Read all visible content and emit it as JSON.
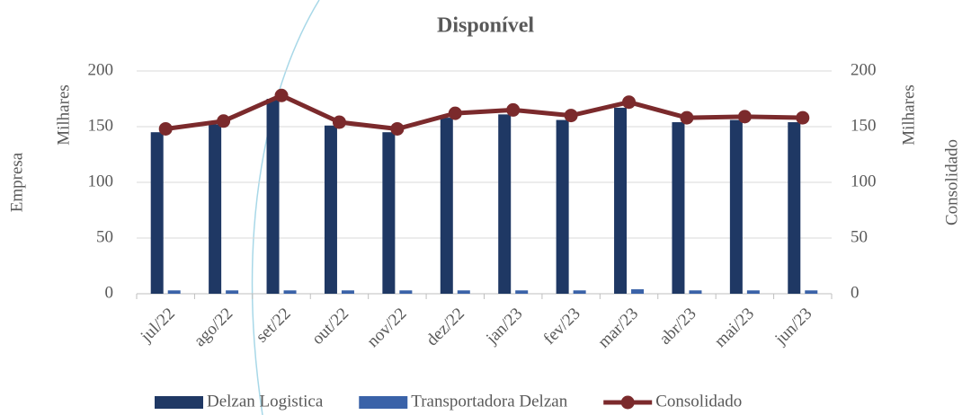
{
  "chart_data": {
    "type": "bar_line",
    "title": "Disponível",
    "y_label": "Empresa",
    "y_unit_label": "Milhares",
    "y2_label": "Consolidado",
    "y2_unit_label": "Milhares",
    "categories": [
      "jul/22",
      "ago/22",
      "set/22",
      "out/22",
      "nov/22",
      "dez/22",
      "jan/23",
      "fev/23",
      "mar/23",
      "abr/23",
      "mai/23",
      "jun/23"
    ],
    "series": [
      {
        "name": "Delzan Logistica",
        "color": "#1f3864",
        "type": "bar",
        "values": [
          145,
          152,
          175,
          151,
          145,
          158,
          161,
          156,
          167,
          154,
          156,
          154
        ]
      },
      {
        "name": "Transportadora Delzan",
        "color": "#3a62a8",
        "type": "bar",
        "values": [
          3,
          3,
          3,
          3,
          3,
          3,
          3,
          3,
          4,
          3,
          3,
          3
        ]
      },
      {
        "name": "Consolidado",
        "color": "#7b2a2c",
        "type": "line",
        "axis": "y2",
        "values": [
          148,
          155,
          178,
          154,
          148,
          162,
          165,
          160,
          172,
          158,
          159,
          158
        ]
      }
    ],
    "ylim": [
      0,
      200
    ],
    "yticks": [
      0,
      50,
      100,
      150,
      200
    ],
    "y2lim": [
      0,
      200
    ],
    "y2ticks": [
      0,
      50,
      100,
      150,
      200
    ],
    "grid": true,
    "legend": "bottom"
  }
}
